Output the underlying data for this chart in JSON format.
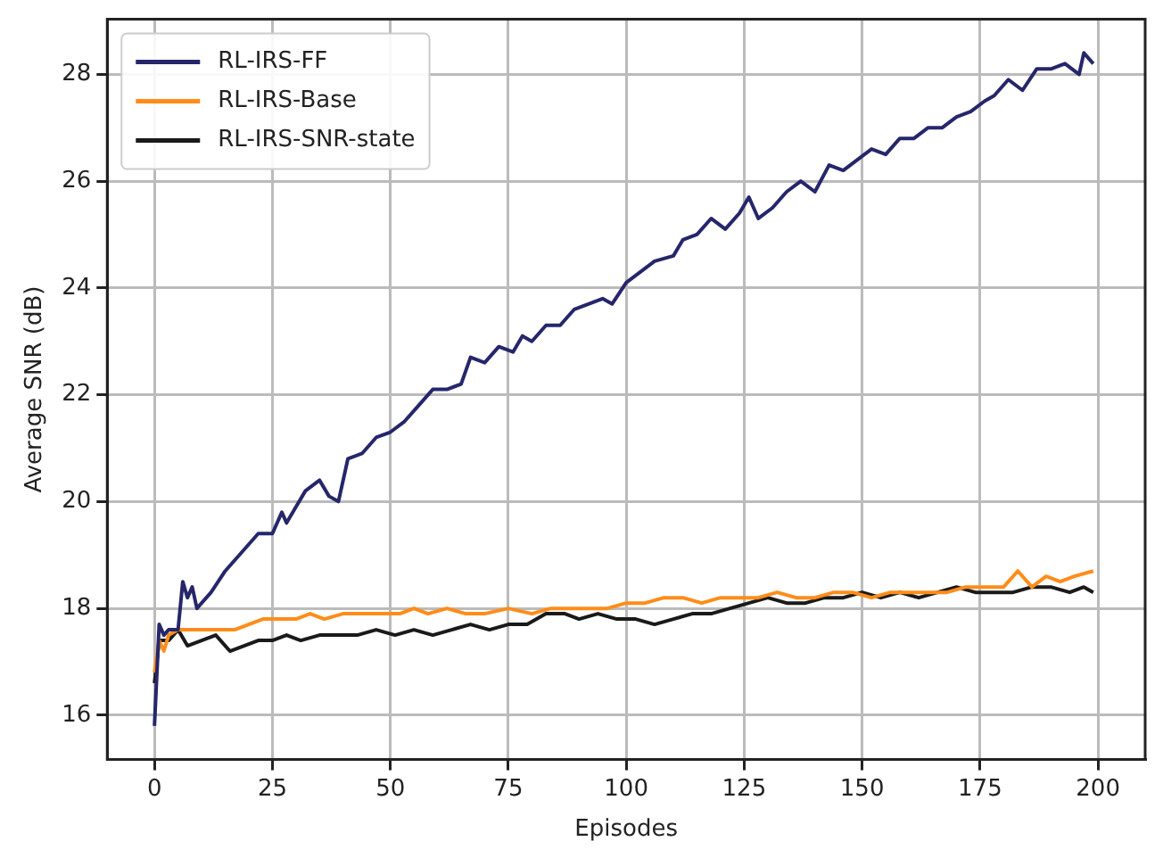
{
  "chart_data": {
    "type": "line",
    "xlabel": "Episodes",
    "ylabel": "Average SNR (dB)",
    "xlim": [
      -10,
      210
    ],
    "xticks": [
      0,
      25,
      50,
      75,
      100,
      125,
      150,
      175,
      200
    ],
    "ylim": [
      15.17,
      29.03
    ],
    "yticks": [
      16,
      18,
      20,
      22,
      24,
      26,
      28
    ],
    "grid": true,
    "legend": "top left",
    "marker": "none",
    "line_style": "solid",
    "series": [
      {
        "name": "RL-IRS-FF",
        "color": "#26266b",
        "x": [
          0,
          1,
          2,
          3,
          5,
          6,
          7,
          8,
          9,
          12,
          15,
          18,
          22,
          25,
          27,
          28,
          30,
          32,
          35,
          37,
          39,
          41,
          44,
          47,
          50,
          53,
          56,
          59,
          62,
          65,
          67,
          70,
          73,
          76,
          78,
          80,
          83,
          86,
          89,
          92,
          95,
          97,
          100,
          103,
          106,
          110,
          112,
          115,
          118,
          121,
          124,
          126,
          128,
          131,
          134,
          137,
          140,
          143,
          146,
          149,
          152,
          155,
          158,
          161,
          164,
          167,
          170,
          173,
          176,
          178,
          181,
          184,
          187,
          190,
          193,
          196,
          197,
          199
        ],
        "values": [
          15.8,
          17.7,
          17.5,
          17.6,
          17.6,
          18.5,
          18.2,
          18.4,
          18.0,
          18.3,
          18.7,
          19.0,
          19.4,
          19.4,
          19.8,
          19.6,
          19.9,
          20.2,
          20.4,
          20.1,
          20.0,
          20.8,
          20.9,
          21.2,
          21.3,
          21.5,
          21.8,
          22.1,
          22.1,
          22.2,
          22.7,
          22.6,
          22.9,
          22.8,
          23.1,
          23.0,
          23.3,
          23.3,
          23.6,
          23.7,
          23.8,
          23.7,
          24.1,
          24.3,
          24.5,
          24.6,
          24.9,
          25.0,
          25.3,
          25.1,
          25.4,
          25.7,
          25.3,
          25.5,
          25.8,
          26.0,
          25.8,
          26.3,
          26.2,
          26.4,
          26.6,
          26.5,
          26.8,
          26.8,
          27.0,
          27.0,
          27.2,
          27.3,
          27.5,
          27.6,
          27.9,
          27.7,
          28.1,
          28.1,
          28.2,
          28.0,
          28.4,
          28.2
        ]
      },
      {
        "name": "RL-IRS-Base",
        "color": "#ff8c1a",
        "x": [
          0,
          1,
          2,
          3,
          5,
          8,
          11,
          14,
          17,
          20,
          23,
          26,
          30,
          33,
          36,
          40,
          44,
          48,
          52,
          55,
          58,
          62,
          66,
          70,
          75,
          80,
          84,
          88,
          92,
          96,
          100,
          104,
          108,
          112,
          116,
          120,
          124,
          128,
          132,
          136,
          140,
          144,
          148,
          152,
          156,
          160,
          164,
          168,
          172,
          176,
          180,
          183,
          186,
          189,
          192,
          195,
          199
        ],
        "values": [
          16.8,
          17.4,
          17.2,
          17.5,
          17.6,
          17.6,
          17.6,
          17.6,
          17.6,
          17.7,
          17.8,
          17.8,
          17.8,
          17.9,
          17.8,
          17.9,
          17.9,
          17.9,
          17.9,
          18.0,
          17.9,
          18.0,
          17.9,
          17.9,
          18.0,
          17.9,
          18.0,
          18.0,
          18.0,
          18.0,
          18.1,
          18.1,
          18.2,
          18.2,
          18.1,
          18.2,
          18.2,
          18.2,
          18.3,
          18.2,
          18.2,
          18.3,
          18.3,
          18.2,
          18.3,
          18.3,
          18.3,
          18.3,
          18.4,
          18.4,
          18.4,
          18.7,
          18.4,
          18.6,
          18.5,
          18.6,
          18.7
        ]
      },
      {
        "name": "RL-IRS-SNR-state",
        "color": "#1a1a1a",
        "x": [
          0,
          1,
          3,
          5,
          7,
          10,
          13,
          16,
          19,
          22,
          25,
          28,
          31,
          35,
          39,
          43,
          47,
          51,
          55,
          59,
          63,
          67,
          71,
          75,
          79,
          83,
          87,
          90,
          94,
          98,
          102,
          106,
          110,
          114,
          118,
          122,
          126,
          130,
          134,
          138,
          142,
          146,
          150,
          154,
          158,
          162,
          166,
          170,
          174,
          178,
          182,
          186,
          190,
          194,
          197,
          199
        ],
        "values": [
          16.6,
          17.4,
          17.4,
          17.6,
          17.3,
          17.4,
          17.5,
          17.2,
          17.3,
          17.4,
          17.4,
          17.5,
          17.4,
          17.5,
          17.5,
          17.5,
          17.6,
          17.5,
          17.6,
          17.5,
          17.6,
          17.7,
          17.6,
          17.7,
          17.7,
          17.9,
          17.9,
          17.8,
          17.9,
          17.8,
          17.8,
          17.7,
          17.8,
          17.9,
          17.9,
          18.0,
          18.1,
          18.2,
          18.1,
          18.1,
          18.2,
          18.2,
          18.3,
          18.2,
          18.3,
          18.2,
          18.3,
          18.4,
          18.3,
          18.3,
          18.3,
          18.4,
          18.4,
          18.3,
          18.4,
          18.3
        ]
      }
    ]
  }
}
